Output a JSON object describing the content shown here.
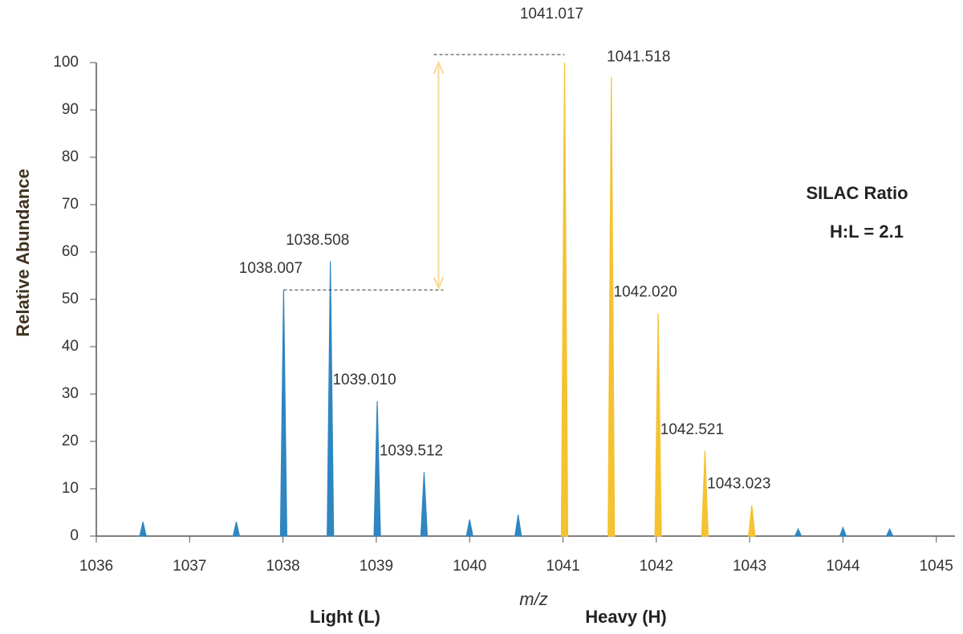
{
  "chart_data": {
    "type": "spectrum",
    "xlabel": "m/z",
    "ylabel": "Relative Abundance",
    "annotations": [
      "SILAC Ratio",
      "H:L = 2.1"
    ],
    "xlim": [
      1036,
      1045.2
    ],
    "ylim": [
      0,
      100
    ],
    "xticks": [
      1036,
      1037,
      1038,
      1039,
      1040,
      1041,
      1042,
      1043,
      1044,
      1045
    ],
    "yticks": [
      0,
      10,
      20,
      30,
      40,
      50,
      60,
      70,
      80,
      90,
      100
    ],
    "series": [
      {
        "name": "Light (L)",
        "color": "#2f86c0",
        "x": [
          1038.007,
          1038.508,
          1039.01,
          1039.512,
          1036.5,
          1037.5,
          1040.0,
          1040.52,
          1043.52,
          1044.0,
          1044.5
        ],
        "x_labels": [
          "1038.007",
          "1038.508",
          "1039.010",
          "1039.512",
          null,
          null,
          null,
          null,
          null,
          null,
          null
        ],
        "values": [
          52,
          58,
          28.5,
          13.5,
          3,
          3,
          3.5,
          4.5,
          1.5,
          1.8,
          1.5
        ]
      },
      {
        "name": "Heavy (H)",
        "color": "#f5c230",
        "x": [
          1041.017,
          1041.518,
          1042.02,
          1042.521,
          1043.023
        ],
        "x_labels": [
          "1041.017",
          "1041.518",
          "1042.020",
          "1042.521",
          "1043.023"
        ],
        "values": [
          100,
          97,
          47,
          18,
          6.5
        ]
      }
    ]
  }
}
